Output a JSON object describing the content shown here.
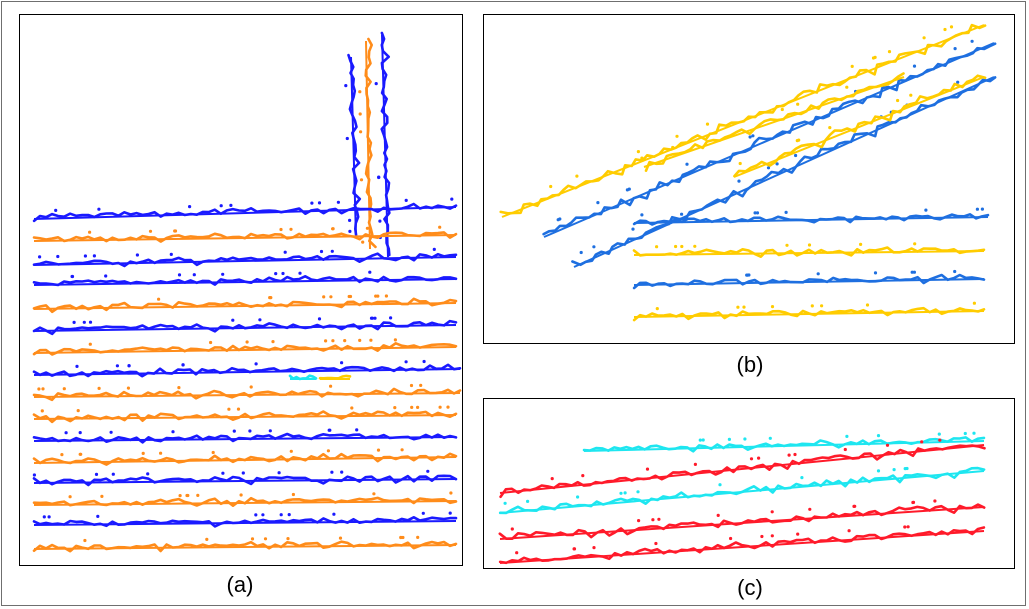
{
  "captions": {
    "a": "(a)",
    "b": "(b)",
    "c": "(c)"
  },
  "colors": {
    "blue": "#1a1aff",
    "mid_blue": "#1e6fe0",
    "orange": "#ff8c1a",
    "yellow": "#ffcc00",
    "cyan": "#1ee6f0",
    "red": "#ff1a2a"
  }
}
